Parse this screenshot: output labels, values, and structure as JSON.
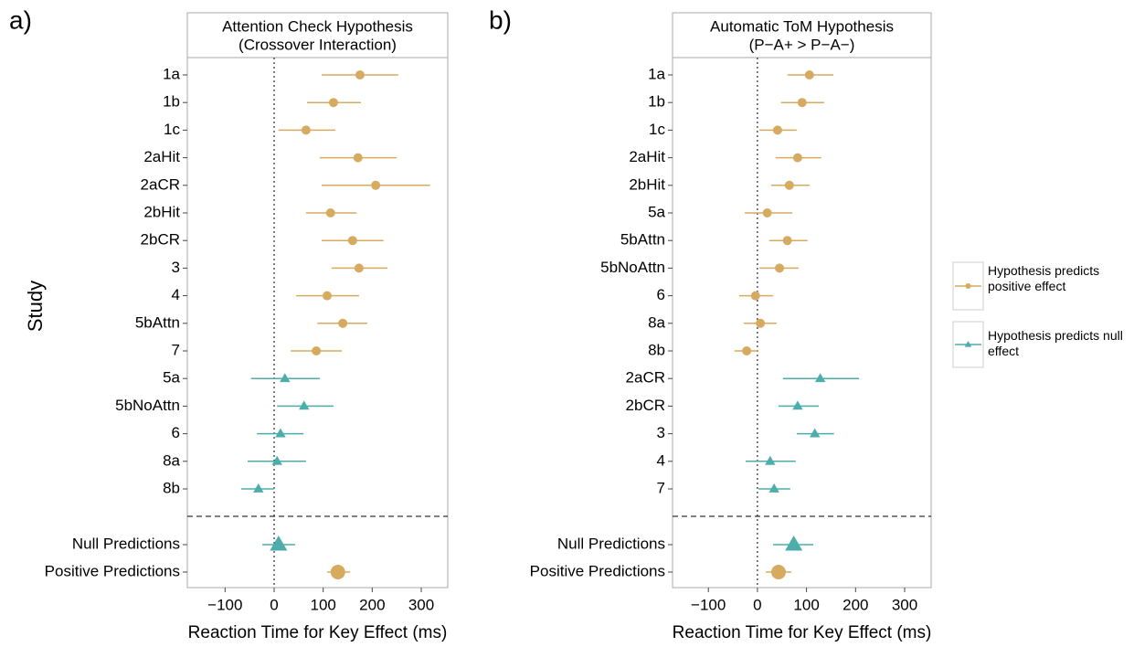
{
  "chart_data": [
    {
      "type": "forest",
      "panel": "a)",
      "title": "Attention Check Hypothesis",
      "subtitle": "(Crossover Interaction)",
      "ylabel": "Study",
      "xlabel": "Reaction Time for Key Effect (ms)",
      "xlim": [
        -177,
        354
      ],
      "xticks": [
        {
          "value": -100,
          "label": "−100"
        },
        0,
        100,
        200,
        300
      ],
      "categories": [
        "1a",
        "1b",
        "1c",
        "2aHit",
        "2aCR",
        "2bHit",
        "2bCR",
        "3",
        "4",
        "5bAttn",
        "7",
        "5a",
        "5bNoAttn",
        "6",
        "8a",
        "8b"
      ],
      "summary_categories": [
        "Null Predictions",
        "Positive Predictions"
      ],
      "series": [
        {
          "name": "Hypothesis predicts positive effect",
          "color": "#d6ab60",
          "marker": "circle",
          "values": [
            175,
            121,
            65,
            171,
            207,
            115,
            160,
            173,
            108,
            140,
            86,
            null,
            null,
            null,
            null,
            null
          ],
          "lower": [
            97,
            67,
            9,
            93,
            97,
            65,
            97,
            117,
            45,
            88,
            34,
            null,
            null,
            null,
            null,
            null
          ],
          "upper": [
            253,
            177,
            125,
            250,
            318,
            168,
            223,
            231,
            173,
            190,
            138,
            null,
            null,
            null,
            null,
            null
          ],
          "summary_values": [
            null,
            130
          ],
          "summary_lower": [
            null,
            108
          ],
          "summary_upper": [
            null,
            155
          ]
        },
        {
          "name": "Hypothesis predicts null effect",
          "color": "#4cadaa",
          "marker": "triangle",
          "values": [
            null,
            null,
            null,
            null,
            null,
            null,
            null,
            null,
            null,
            null,
            null,
            22,
            61,
            13,
            6,
            -32
          ],
          "lower": [
            null,
            null,
            null,
            null,
            null,
            null,
            null,
            null,
            null,
            null,
            null,
            -47,
            6,
            -35,
            -54,
            -67
          ],
          "upper": [
            null,
            null,
            null,
            null,
            null,
            null,
            null,
            null,
            null,
            null,
            null,
            93,
            121,
            60,
            65,
            0
          ],
          "summary_values": [
            9,
            null
          ],
          "summary_lower": [
            -24,
            null
          ],
          "summary_upper": [
            43,
            null
          ]
        }
      ]
    },
    {
      "type": "forest",
      "panel": "b)",
      "title": "Automatic ToM Hypothesis",
      "subtitle": "(P−A+ > P−A−)",
      "xlabel": "Reaction Time for Key Effect (ms)",
      "xlim": [
        -173,
        354
      ],
      "xticks": [
        {
          "value": -100,
          "label": "−100"
        },
        0,
        100,
        200,
        300
      ],
      "categories": [
        "1a",
        "1b",
        "1c",
        "2aHit",
        "2bHit",
        "5a",
        "5bAttn",
        "5bNoAttn",
        "6",
        "8a",
        "8b",
        "2aCR",
        "2bCR",
        "3",
        "4",
        "7"
      ],
      "summary_categories": [
        "Null Predictions",
        "Positive Predictions"
      ],
      "series": [
        {
          "name": "Hypothesis predicts positive effect",
          "color": "#d6ab60",
          "marker": "circle",
          "values": [
            106,
            91,
            41,
            82,
            65,
            20,
            61,
            45,
            -4,
            6,
            -22,
            null,
            null,
            null,
            null,
            null
          ],
          "lower": [
            61,
            48,
            4,
            37,
            28,
            -26,
            24,
            4,
            -37,
            -28,
            -47,
            null,
            null,
            null,
            null,
            null
          ],
          "upper": [
            155,
            136,
            80,
            130,
            106,
            71,
            102,
            84,
            32,
            39,
            2,
            null,
            null,
            null,
            null,
            null
          ],
          "summary_values": [
            null,
            43
          ],
          "summary_lower": [
            null,
            17
          ],
          "summary_upper": [
            null,
            69
          ]
        },
        {
          "name": "Hypothesis predicts null effect",
          "color": "#4cadaa",
          "marker": "triangle",
          "values": [
            null,
            null,
            null,
            null,
            null,
            null,
            null,
            null,
            null,
            null,
            null,
            128,
            82,
            117,
            26,
            34
          ],
          "lower": [
            null,
            null,
            null,
            null,
            null,
            null,
            null,
            null,
            null,
            null,
            null,
            52,
            43,
            80,
            -24,
            2
          ],
          "upper": [
            null,
            null,
            null,
            null,
            null,
            null,
            null,
            null,
            null,
            null,
            null,
            207,
            125,
            156,
            78,
            67
          ],
          "summary_values": [
            74,
            null
          ],
          "summary_lower": [
            32,
            null
          ],
          "summary_upper": [
            114,
            null
          ]
        }
      ]
    }
  ]
}
